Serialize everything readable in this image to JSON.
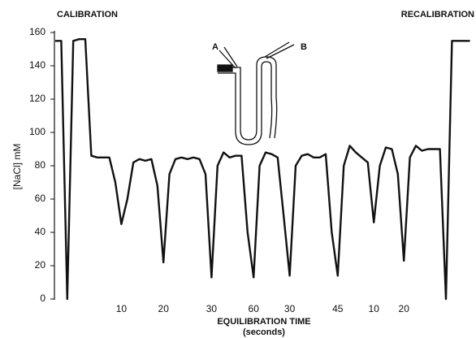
{
  "chart_data": {
    "type": "line",
    "y_label": "[NaCl] mM",
    "x_label": "EQUILIBRATION TIME",
    "x_sublabel": "(seconds)",
    "annotations": {
      "left": "CALIBRATION",
      "right": "RECALIBRATION",
      "a": "A",
      "b": "B"
    },
    "categories": [
      null,
      null,
      null,
      null,
      null,
      null,
      null,
      null,
      null,
      null,
      null,
      "10",
      null,
      null,
      null,
      null,
      null,
      null,
      "20",
      null,
      null,
      null,
      null,
      null,
      null,
      null,
      "30",
      null,
      null,
      null,
      null,
      null,
      null,
      "60",
      null,
      null,
      null,
      null,
      null,
      "30",
      null,
      null,
      null,
      null,
      null,
      null,
      null,
      "45",
      null,
      null,
      null,
      null,
      null,
      "10",
      null,
      null,
      null,
      null,
      "20",
      null,
      null,
      null,
      null,
      null,
      null,
      null,
      null,
      null,
      null,
      null
    ],
    "values": [
      155,
      155,
      0,
      155,
      156,
      156,
      86,
      85,
      85,
      85,
      70,
      45,
      60,
      82,
      84,
      83,
      84,
      68,
      22,
      75,
      84,
      85,
      84,
      85,
      84,
      75,
      13,
      80,
      88,
      85,
      86,
      86,
      40,
      13,
      80,
      88,
      87,
      85,
      50,
      14,
      80,
      86,
      87,
      85,
      85,
      87,
      40,
      14,
      80,
      92,
      88,
      85,
      82,
      46,
      80,
      91,
      90,
      75,
      23,
      85,
      92,
      89,
      90,
      90,
      90,
      0,
      155,
      155,
      155,
      155
    ],
    "color": "#111111",
    "ylim": [
      0,
      160
    ],
    "yticks": [
      0,
      20,
      40,
      60,
      80,
      100,
      120,
      140,
      160
    ],
    "grid": false
  }
}
